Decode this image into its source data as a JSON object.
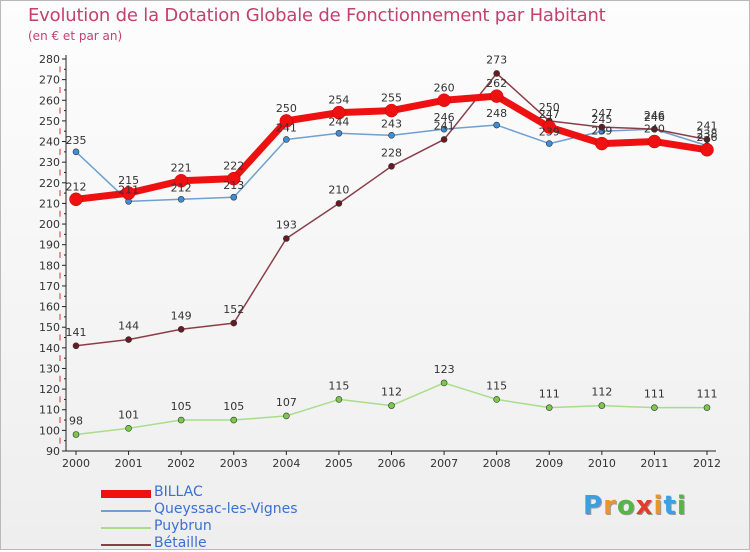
{
  "chart_data": {
    "type": "line",
    "title": "Evolution de la Dotation Globale de Fonctionnement par Habitant",
    "subtitle": "(en € et par an)",
    "xlabel": "",
    "ylabel": "",
    "categories": [
      "2000",
      "2001",
      "2002",
      "2003",
      "2004",
      "2005",
      "2006",
      "2007",
      "2008",
      "2009",
      "2010",
      "2011",
      "2012"
    ],
    "ylim": [
      90,
      280
    ],
    "yticks": [
      90,
      100,
      110,
      120,
      130,
      140,
      150,
      160,
      170,
      180,
      190,
      200,
      210,
      220,
      230,
      240,
      250,
      260,
      270,
      280
    ],
    "grid": false,
    "legend_position": "bottom-left",
    "series": [
      {
        "name": "BILLAC",
        "color": "#ee1111",
        "marker": "#ee1111",
        "values": [
          212,
          215,
          221,
          222,
          250,
          254,
          255,
          260,
          262,
          247,
          239,
          240,
          236
        ]
      },
      {
        "name": "Queyssac-les-Vignes",
        "color": "#6fa0cf",
        "marker": "#3e8ed6",
        "values": [
          235,
          211,
          212,
          213,
          241,
          244,
          243,
          246,
          248,
          239,
          245,
          246,
          238
        ]
      },
      {
        "name": "Puybrun",
        "color": "#a8dd8a",
        "marker": "#7bc94a",
        "values": [
          98,
          101,
          105,
          105,
          107,
          115,
          112,
          123,
          115,
          111,
          112,
          111,
          111
        ]
      },
      {
        "name": "Bétaille",
        "color": "#8a3f48",
        "marker": "#6a1a22",
        "values": [
          141,
          144,
          149,
          152,
          193,
          210,
          228,
          241,
          273,
          250,
          247,
          246,
          241
        ]
      }
    ]
  },
  "logo": {
    "letters": [
      "P",
      "r",
      "o",
      "x",
      "i",
      "t",
      "i"
    ],
    "colors": [
      "#3aa0e0",
      "#e8962a",
      "#55b547",
      "#e23d2c",
      "#e8962a",
      "#3aa0e0",
      "#55b547"
    ]
  }
}
